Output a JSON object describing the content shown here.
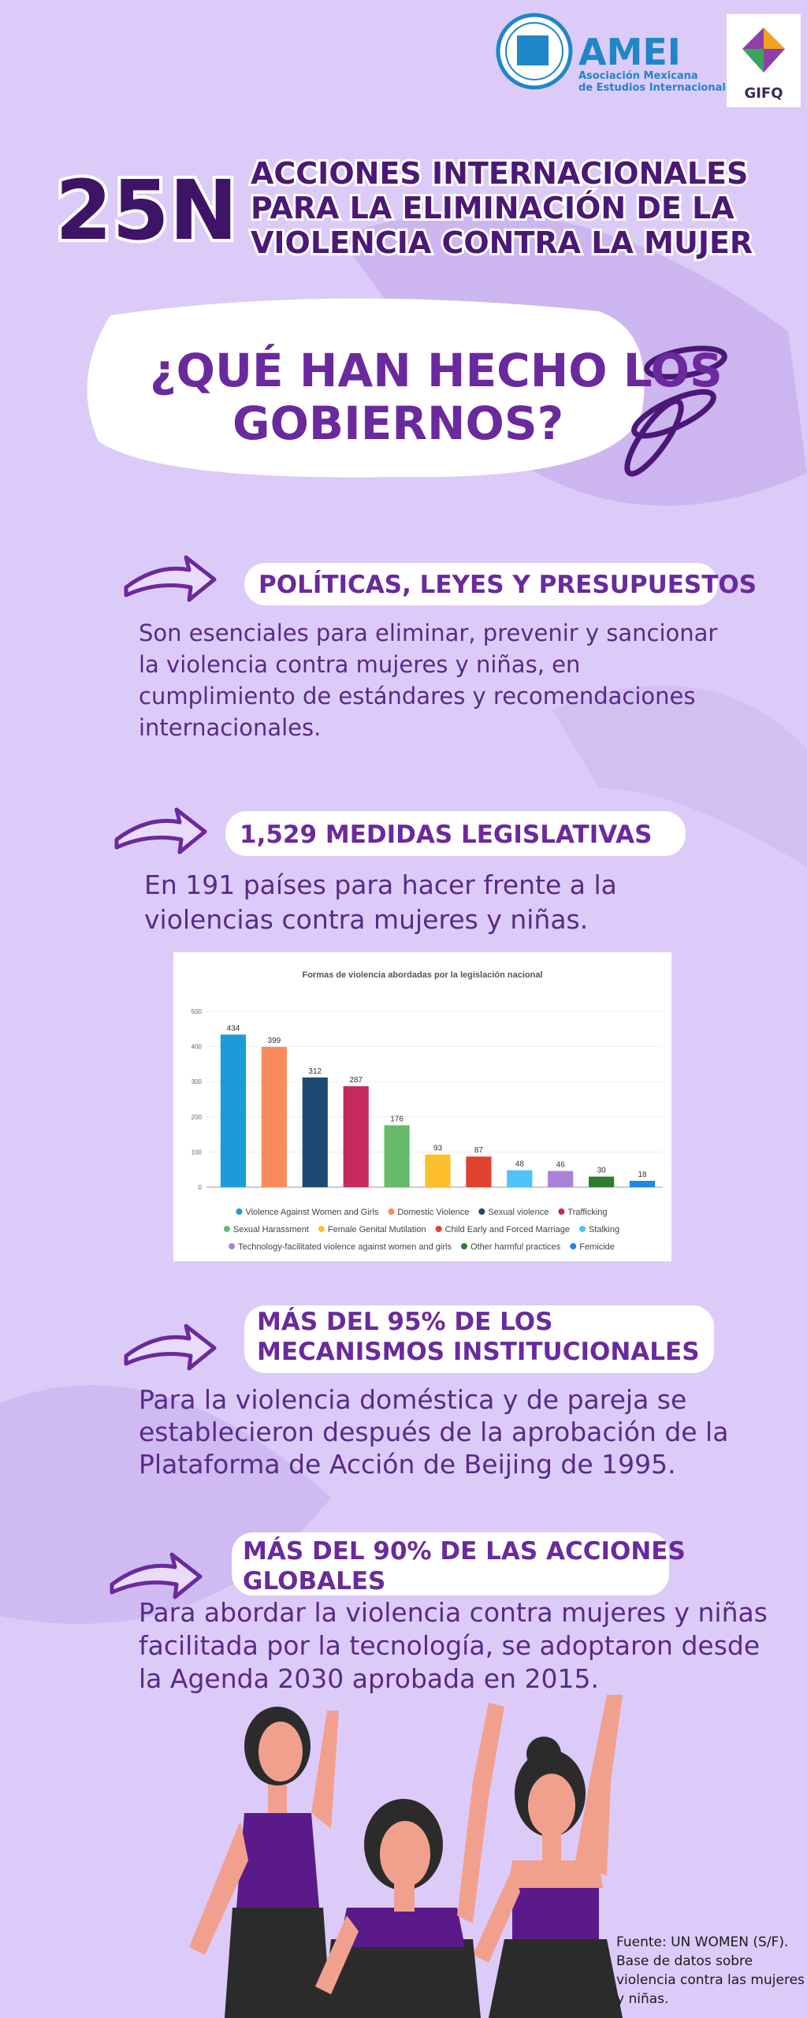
{
  "header": {
    "logo_name": "AMEI",
    "logo_subtitle_1": "Asociación Mexicana",
    "logo_subtitle_2": "de Estudios Internacionales",
    "partner_logo": "GIFQ",
    "badge": "25N",
    "title_lines": [
      "ACCIONES INTERNACIONALES",
      "PARA LA ELIMINACIÓN DE LA",
      "VIOLENCIA CONTRA LA MUJER"
    ]
  },
  "question": {
    "lines": [
      "¿QUÉ HAN HECHO LOS",
      "GOBIERNOS?"
    ]
  },
  "sections": [
    {
      "heading_lines": [
        "POLÍTICAS, LEYES Y PRESUPUESTOS"
      ],
      "body_lines": [
        "Son esenciales para eliminar, prevenir y sancionar",
        "la violencia contra mujeres y niñas, en",
        "cumplimiento de estándares y recomendaciones",
        "internacionales."
      ]
    },
    {
      "heading_lines": [
        "1,529 MEDIDAS LEGISLATIVAS"
      ],
      "body_lines": [
        "En 191 países para hacer frente a la",
        "violencias contra mujeres y niñas."
      ]
    },
    {
      "heading_lines": [
        "MÁS DEL 95% DE LOS",
        "MECANISMOS INSTITUCIONALES"
      ],
      "body_lines": [
        "Para la violencia doméstica y de pareja se",
        "establecieron después de la aprobación de la",
        "Plataforma de Acción de Beijing de 1995."
      ]
    },
    {
      "heading_lines": [
        "MÁS DEL 90% DE LAS ACCIONES",
        "GLOBALES"
      ],
      "body_lines": [
        "Para abordar la violencia contra mujeres y niñas",
        "facilitada por la tecnología, se adoptaron desde",
        "la Agenda 2030 aprobada en 2015."
      ]
    }
  ],
  "chart_data": {
    "type": "bar",
    "title": "Formas de violencia abordadas por la legislación nacional",
    "categories": [
      "Violence Against Women and Girls",
      "Domestic Violence",
      "Sexual violence",
      "Trafficking",
      "Sexual Harassment",
      "Female Genital Mutilation",
      "Child Early and Forced Marriage",
      "Stalking",
      "Technology-facilitated violence against women and girls",
      "Other harmful practices",
      "Femicide"
    ],
    "values": [
      434,
      399,
      312,
      287,
      176,
      93,
      87,
      48,
      46,
      30,
      18
    ],
    "colors": [
      "#1b9bd7",
      "#fb8a5c",
      "#1d4a72",
      "#c42b5c",
      "#66bb6a",
      "#fbc02d",
      "#e0422f",
      "#4fc3f7",
      "#ab82d9",
      "#2e7d32",
      "#1e88e5"
    ],
    "ylim": [
      0,
      500
    ],
    "yticks": [
      0,
      100,
      200,
      300,
      400,
      500
    ],
    "grid": true
  },
  "source": {
    "lines": [
      "Fuente: UN WOMEN (S/F).",
      "Base de datos sobre",
      "violencia contra las mujeres",
      "y niñas."
    ]
  }
}
